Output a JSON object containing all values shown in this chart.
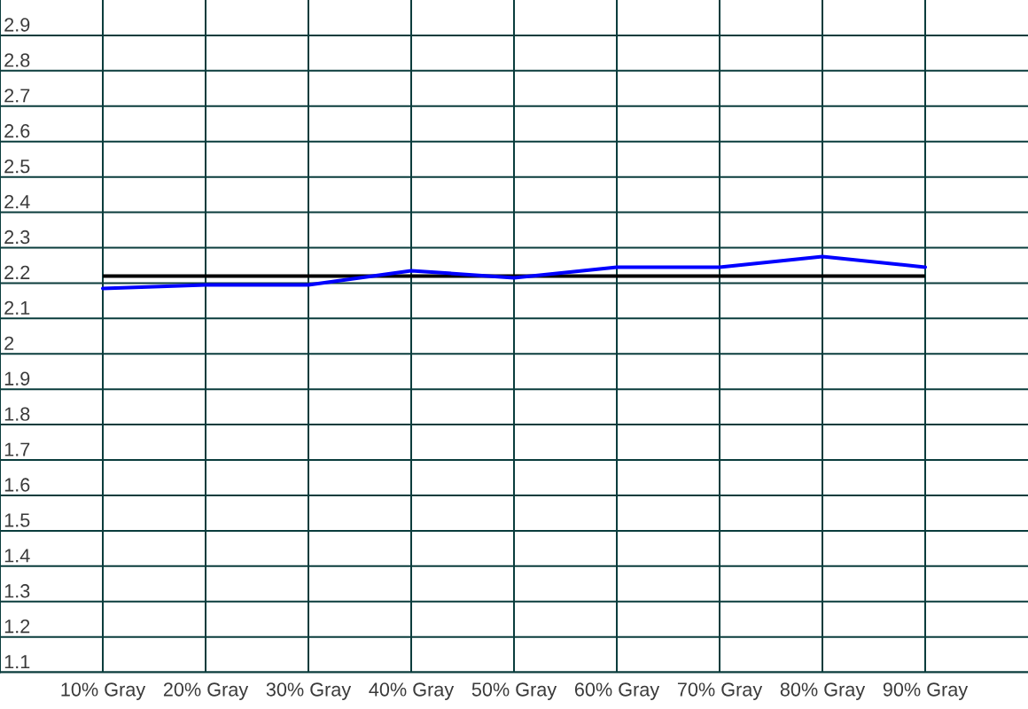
{
  "chart_data": {
    "type": "line",
    "categories": [
      "10% Gray",
      "20% Gray",
      "30% Gray",
      "40% Gray",
      "50% Gray",
      "60% Gray",
      "70% Gray",
      "80% Gray",
      "90% Gray"
    ],
    "series": [
      {
        "color": "#0000ff",
        "values": [
          2.185,
          2.195,
          2.195,
          2.235,
          2.215,
          2.245,
          2.245,
          2.275,
          2.245
        ]
      }
    ],
    "ylim": [
      1.1,
      3
    ],
    "yticks": [
      1.1,
      1.2,
      1.3,
      1.4,
      1.5,
      1.6,
      1.7,
      1.8,
      1.9,
      2,
      2.1,
      2.2,
      2.3,
      2.4,
      2.5,
      2.6,
      2.7,
      2.8,
      2.9
    ],
    "grid": true,
    "ref_lines": [
      {
        "axis": "y",
        "value": 2.22,
        "color": "#000000"
      }
    ]
  }
}
